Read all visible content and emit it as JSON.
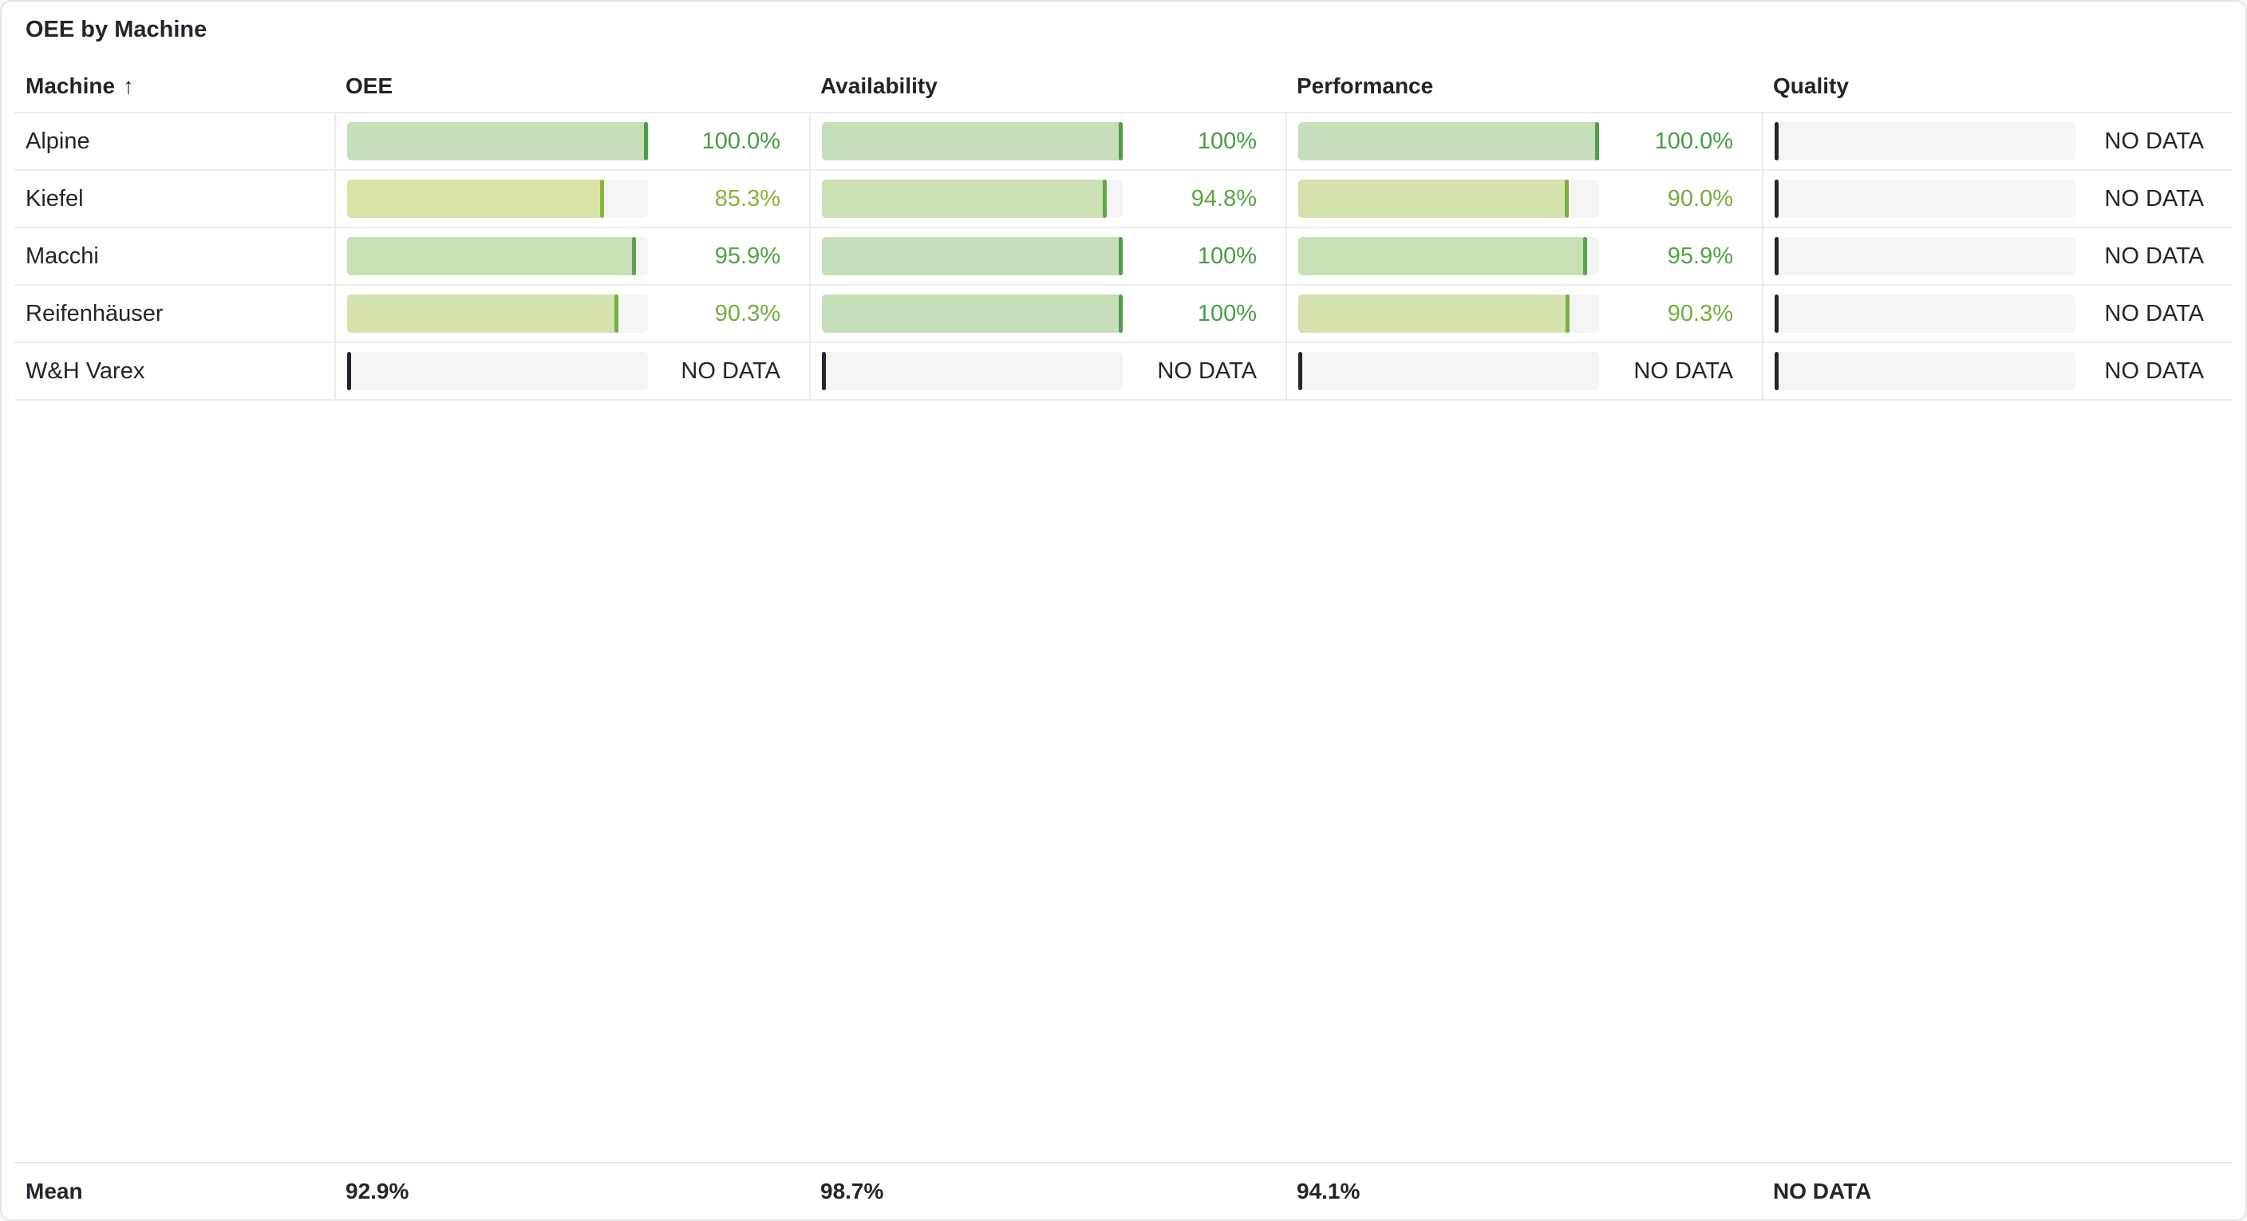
{
  "title": "OEE by Machine",
  "no_data_label": "NO DATA",
  "colors": {
    "text_dark": "#20262e",
    "no_data_marker": "#21262e",
    "track": "#f3f4f3",
    "row_border": "#ebedee"
  },
  "columns": [
    {
      "label": "Machine",
      "sort_icon": "↑",
      "sorted": "ascending"
    },
    {
      "label": "OEE"
    },
    {
      "label": "Availability"
    },
    {
      "label": "Performance"
    },
    {
      "label": "Quality"
    }
  ],
  "rows": [
    {
      "machine": "Alpine",
      "metrics": [
        {
          "name": "oee",
          "label": "100.0%",
          "pct": 100,
          "no_data": false,
          "fill": "#c5dfba",
          "marker": "#4f9d4b",
          "text": "#4a9c46"
        },
        {
          "name": "availability",
          "label": "100%",
          "pct": 100,
          "no_data": false,
          "fill": "#c5dfba",
          "marker": "#4f9d4b",
          "text": "#4a9c46"
        },
        {
          "name": "performance",
          "label": "100.0%",
          "pct": 100,
          "no_data": false,
          "fill": "#c5dfba",
          "marker": "#4f9d4b",
          "text": "#4a9c46"
        },
        {
          "name": "quality",
          "label": "NO DATA",
          "pct": 0,
          "no_data": true
        }
      ]
    },
    {
      "machine": "Kiefel",
      "metrics": [
        {
          "name": "oee",
          "label": "85.3%",
          "pct": 85.3,
          "no_data": false,
          "fill": "#d9e3a6",
          "marker": "#8ab63c",
          "text": "#88b538"
        },
        {
          "name": "availability",
          "label": "94.8%",
          "pct": 94.8,
          "no_data": false,
          "fill": "#cce1b4",
          "marker": "#60a746",
          "text": "#5ca743"
        },
        {
          "name": "performance",
          "label": "90.0%",
          "pct": 90,
          "no_data": false,
          "fill": "#d4e2ad",
          "marker": "#76af40",
          "text": "#73ae3d"
        },
        {
          "name": "quality",
          "label": "NO DATA",
          "pct": 0,
          "no_data": true
        }
      ]
    },
    {
      "machine": "Macchi",
      "metrics": [
        {
          "name": "oee",
          "label": "95.9%",
          "pct": 95.9,
          "no_data": false,
          "fill": "#c9e0b6",
          "marker": "#5aa449",
          "text": "#55a245"
        },
        {
          "name": "availability",
          "label": "100%",
          "pct": 100,
          "no_data": false,
          "fill": "#c5dfba",
          "marker": "#4f9d4b",
          "text": "#4a9c46"
        },
        {
          "name": "performance",
          "label": "95.9%",
          "pct": 95.9,
          "no_data": false,
          "fill": "#c9e0b6",
          "marker": "#5aa449",
          "text": "#55a245"
        },
        {
          "name": "quality",
          "label": "NO DATA",
          "pct": 0,
          "no_data": true
        }
      ]
    },
    {
      "machine": "Reifenhäuser",
      "metrics": [
        {
          "name": "oee",
          "label": "90.3%",
          "pct": 90.3,
          "no_data": false,
          "fill": "#d4e2ad",
          "marker": "#76af40",
          "text": "#73ae3d"
        },
        {
          "name": "availability",
          "label": "100%",
          "pct": 100,
          "no_data": false,
          "fill": "#c5dfba",
          "marker": "#4f9d4b",
          "text": "#4a9c46"
        },
        {
          "name": "performance",
          "label": "90.3%",
          "pct": 90.3,
          "no_data": false,
          "fill": "#d4e2ad",
          "marker": "#76af40",
          "text": "#73ae3d"
        },
        {
          "name": "quality",
          "label": "NO DATA",
          "pct": 0,
          "no_data": true
        }
      ]
    },
    {
      "machine": "W&H Varex",
      "metrics": [
        {
          "name": "oee",
          "label": "NO DATA",
          "pct": 0,
          "no_data": true
        },
        {
          "name": "availability",
          "label": "NO DATA",
          "pct": 0,
          "no_data": true
        },
        {
          "name": "performance",
          "label": "NO DATA",
          "pct": 0,
          "no_data": true
        },
        {
          "name": "quality",
          "label": "NO DATA",
          "pct": 0,
          "no_data": true
        }
      ]
    }
  ],
  "summary": {
    "label": "Mean",
    "oee": "92.9%",
    "availability": "98.7%",
    "performance": "94.1%",
    "quality": "NO DATA"
  },
  "chart_data": {
    "type": "table",
    "title": "OEE by Machine",
    "columns": [
      "Machine",
      "OEE",
      "Availability",
      "Performance",
      "Quality"
    ],
    "bar_range": [
      0,
      100
    ],
    "sort": {
      "column": "Machine",
      "direction": "ascending"
    },
    "rows": [
      {
        "machine": "Alpine",
        "oee": 100.0,
        "availability": 100,
        "performance": 100.0,
        "quality": null
      },
      {
        "machine": "Kiefel",
        "oee": 85.3,
        "availability": 94.8,
        "performance": 90.0,
        "quality": null
      },
      {
        "machine": "Macchi",
        "oee": 95.9,
        "availability": 100,
        "performance": 95.9,
        "quality": null
      },
      {
        "machine": "Reifenhäuser",
        "oee": 90.3,
        "availability": 100,
        "performance": 90.3,
        "quality": null
      },
      {
        "machine": "W&H Varex",
        "oee": null,
        "availability": null,
        "performance": null,
        "quality": null
      }
    ],
    "mean": {
      "oee": 92.9,
      "availability": 98.7,
      "performance": 94.1,
      "quality": null
    }
  }
}
